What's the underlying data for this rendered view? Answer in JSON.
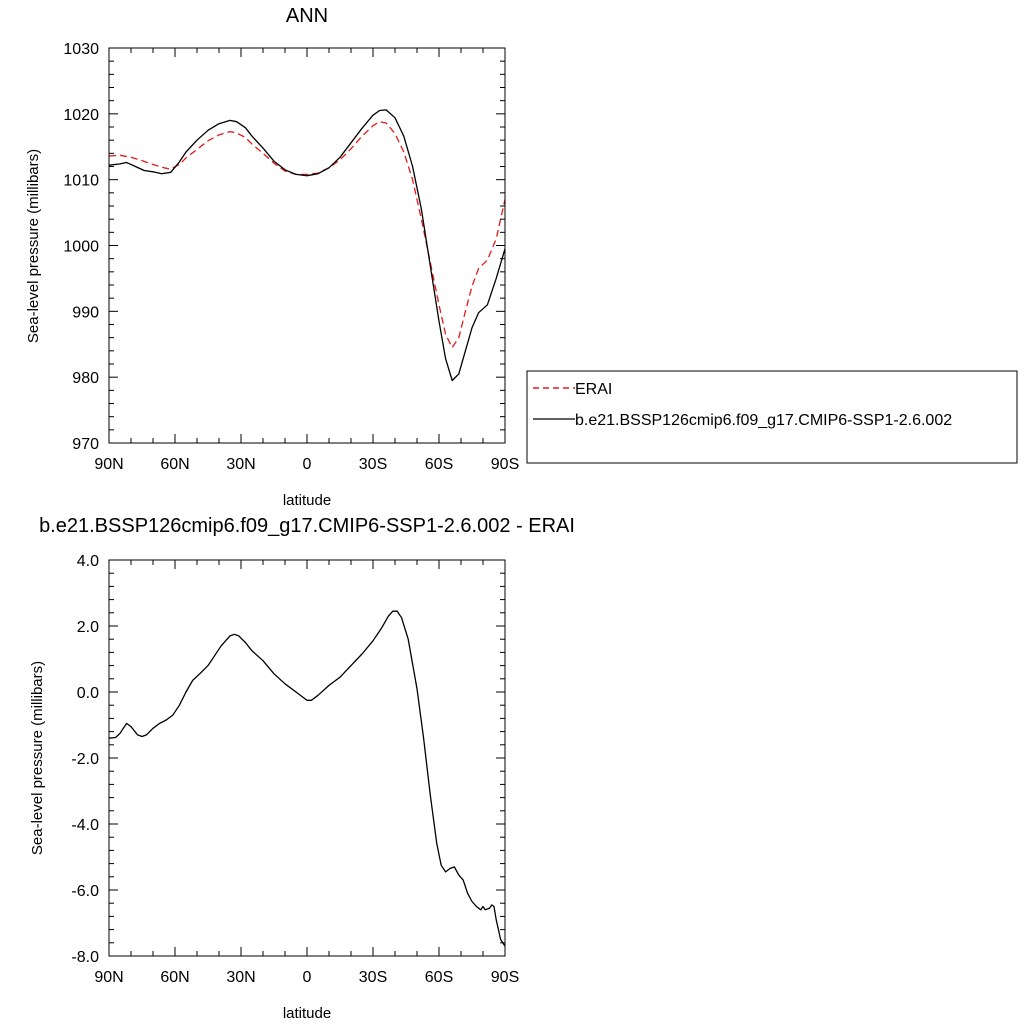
{
  "chart_data": [
    {
      "type": "line",
      "title": "ANN",
      "xlabel": "latitude",
      "ylabel": "Sea-level pressure (millibars)",
      "xlim": [
        90,
        -90
      ],
      "ylim": [
        970,
        1030
      ],
      "xticks": [
        90,
        60,
        30,
        0,
        -30,
        -60,
        -90
      ],
      "xtick_labels": [
        "90N",
        "60N",
        "30N",
        "0",
        "30S",
        "60S",
        "90S"
      ],
      "yticks": [
        970,
        980,
        990,
        1000,
        1010,
        1020,
        1030
      ],
      "ytick_labels": [
        "970",
        "980",
        "990",
        "1000",
        "1010",
        "1020",
        "1030"
      ],
      "legend_position": "right",
      "series": [
        {
          "name": "ERAI",
          "color": "#e8191c",
          "dash": "dashed",
          "points": [
            [
              90,
              1013.6
            ],
            [
              85,
              1013.7
            ],
            [
              80,
              1013.4
            ],
            [
              75,
              1012.9
            ],
            [
              70,
              1012.3
            ],
            [
              65,
              1011.8
            ],
            [
              62,
              1011.6
            ],
            [
              58,
              1012.3
            ],
            [
              55,
              1013.3
            ],
            [
              50,
              1014.6
            ],
            [
              45,
              1015.9
            ],
            [
              40,
              1016.8
            ],
            [
              35,
              1017.3
            ],
            [
              32,
              1017.1
            ],
            [
              28,
              1016.4
            ],
            [
              25,
              1015.4
            ],
            [
              20,
              1014.0
            ],
            [
              15,
              1012.5
            ],
            [
              10,
              1011.3
            ],
            [
              5,
              1010.8
            ],
            [
              0,
              1010.8
            ],
            [
              -5,
              1011.0
            ],
            [
              -10,
              1011.8
            ],
            [
              -15,
              1013.0
            ],
            [
              -20,
              1014.7
            ],
            [
              -25,
              1016.6
            ],
            [
              -30,
              1018.2
            ],
            [
              -33,
              1018.8
            ],
            [
              -36,
              1018.6
            ],
            [
              -40,
              1017.0
            ],
            [
              -44,
              1014.2
            ],
            [
              -48,
              1010.0
            ],
            [
              -52,
              1004.0
            ],
            [
              -56,
              997.5
            ],
            [
              -60,
              991.0
            ],
            [
              -63,
              986.5
            ],
            [
              -66,
              984.5
            ],
            [
              -69,
              986.0
            ],
            [
              -72,
              990.0
            ],
            [
              -75,
              993.8
            ],
            [
              -78,
              996.5
            ],
            [
              -82,
              997.8
            ],
            [
              -86,
              1001.0
            ],
            [
              -90,
              1007.0
            ]
          ]
        },
        {
          "name": "b.e21.BSSP126cmip6.f09_g17.CMIP6-SSP1-2.6.002",
          "color": "#000000",
          "dash": "solid",
          "points": [
            [
              90,
              1012.2
            ],
            [
              85,
              1012.4
            ],
            [
              82,
              1012.6
            ],
            [
              78,
              1012.0
            ],
            [
              74,
              1011.4
            ],
            [
              70,
              1011.2
            ],
            [
              66,
              1010.9
            ],
            [
              62,
              1011.1
            ],
            [
              58,
              1012.7
            ],
            [
              55,
              1014.2
            ],
            [
              50,
              1016.0
            ],
            [
              45,
              1017.5
            ],
            [
              40,
              1018.5
            ],
            [
              35,
              1019.0
            ],
            [
              32,
              1018.8
            ],
            [
              28,
              1017.9
            ],
            [
              25,
              1016.6
            ],
            [
              20,
              1014.8
            ],
            [
              15,
              1012.8
            ],
            [
              10,
              1011.5
            ],
            [
              5,
              1010.8
            ],
            [
              0,
              1010.6
            ],
            [
              -5,
              1010.9
            ],
            [
              -10,
              1011.8
            ],
            [
              -15,
              1013.4
            ],
            [
              -20,
              1015.6
            ],
            [
              -25,
              1017.8
            ],
            [
              -30,
              1019.8
            ],
            [
              -33,
              1020.5
            ],
            [
              -36,
              1020.6
            ],
            [
              -40,
              1019.4
            ],
            [
              -44,
              1016.6
            ],
            [
              -48,
              1012.0
            ],
            [
              -52,
              1005.5
            ],
            [
              -56,
              997.0
            ],
            [
              -60,
              988.5
            ],
            [
              -63,
              982.8
            ],
            [
              -66,
              979.5
            ],
            [
              -69,
              980.5
            ],
            [
              -72,
              984.0
            ],
            [
              -75,
              987.5
            ],
            [
              -78,
              989.8
            ],
            [
              -82,
              991.0
            ],
            [
              -86,
              995.0
            ],
            [
              -90,
              999.5
            ]
          ]
        }
      ]
    },
    {
      "type": "line",
      "title": "b.e21.BSSP126cmip6.f09_g17.CMIP6-SSP1-2.6.002 - ERAI",
      "xlabel": "latitude",
      "ylabel": "Sea-level pressure (millibars)",
      "xlim": [
        90,
        -90
      ],
      "ylim": [
        -8,
        4
      ],
      "xticks": [
        90,
        60,
        30,
        0,
        -30,
        -60,
        -90
      ],
      "xtick_labels": [
        "90N",
        "60N",
        "30N",
        "0",
        "30S",
        "60S",
        "90S"
      ],
      "yticks": [
        -8,
        -6,
        -4,
        -2,
        0,
        2,
        4
      ],
      "ytick_labels": [
        "-8.0",
        "-6.0",
        "-4.0",
        "-2.0",
        "0.0",
        "2.0",
        "4.0"
      ],
      "series": [
        {
          "color": "#000000",
          "dash": "solid",
          "points": [
            [
              90,
              -1.4
            ],
            [
              87,
              -1.38
            ],
            [
              85,
              -1.25
            ],
            [
              82,
              -0.95
            ],
            [
              80,
              -1.05
            ],
            [
              77,
              -1.3
            ],
            [
              75,
              -1.35
            ],
            [
              73,
              -1.3
            ],
            [
              70,
              -1.1
            ],
            [
              67,
              -0.95
            ],
            [
              64,
              -0.85
            ],
            [
              61,
              -0.7
            ],
            [
              58,
              -0.4
            ],
            [
              55,
              0.0
            ],
            [
              52,
              0.35
            ],
            [
              48,
              0.6
            ],
            [
              45,
              0.8
            ],
            [
              42,
              1.1
            ],
            [
              39,
              1.4
            ],
            [
              37,
              1.55
            ],
            [
              35,
              1.7
            ],
            [
              33,
              1.75
            ],
            [
              31,
              1.7
            ],
            [
              28,
              1.5
            ],
            [
              25,
              1.25
            ],
            [
              20,
              0.95
            ],
            [
              15,
              0.55
            ],
            [
              10,
              0.25
            ],
            [
              5,
              0.0
            ],
            [
              2,
              -0.15
            ],
            [
              0,
              -0.25
            ],
            [
              -2,
              -0.25
            ],
            [
              -5,
              -0.1
            ],
            [
              -10,
              0.2
            ],
            [
              -15,
              0.45
            ],
            [
              -20,
              0.8
            ],
            [
              -25,
              1.15
            ],
            [
              -30,
              1.55
            ],
            [
              -34,
              1.95
            ],
            [
              -37,
              2.3
            ],
            [
              -39,
              2.45
            ],
            [
              -41,
              2.45
            ],
            [
              -43,
              2.25
            ],
            [
              -46,
              1.6
            ],
            [
              -50,
              0.1
            ],
            [
              -53,
              -1.4
            ],
            [
              -56,
              -3.1
            ],
            [
              -59,
              -4.6
            ],
            [
              -61,
              -5.25
            ],
            [
              -63,
              -5.45
            ],
            [
              -65,
              -5.35
            ],
            [
              -67,
              -5.3
            ],
            [
              -69,
              -5.55
            ],
            [
              -71,
              -5.7
            ],
            [
              -73,
              -6.1
            ],
            [
              -75,
              -6.35
            ],
            [
              -77,
              -6.5
            ],
            [
              -79,
              -6.6
            ],
            [
              -80,
              -6.5
            ],
            [
              -81,
              -6.6
            ],
            [
              -83,
              -6.55
            ],
            [
              -84,
              -6.45
            ],
            [
              -85,
              -6.5
            ],
            [
              -86,
              -6.9
            ],
            [
              -88,
              -7.5
            ],
            [
              -90,
              -7.7
            ]
          ]
        }
      ]
    }
  ]
}
